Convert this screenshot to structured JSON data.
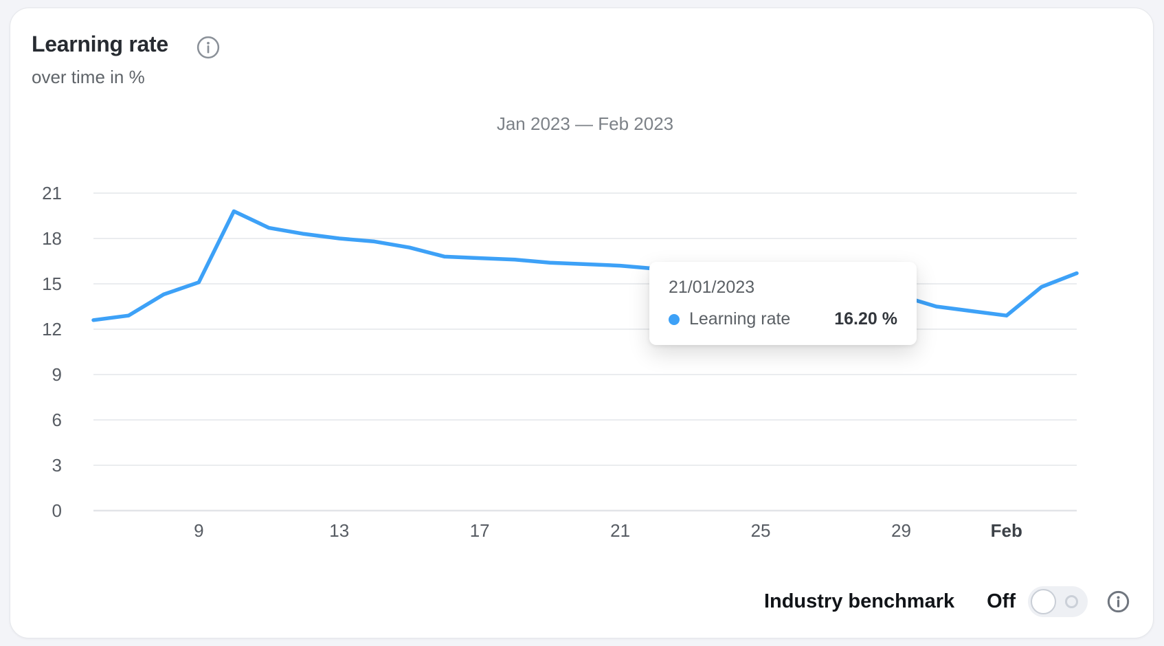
{
  "card": {
    "title": "Learning rate",
    "subtitle": "over time in %",
    "range_title": "Jan 2023 — Feb 2023"
  },
  "tooltip": {
    "date": "21/01/2023",
    "series_label": "Learning rate",
    "value": "16.20 %"
  },
  "benchmark": {
    "label": "Industry benchmark",
    "state_label": "Off"
  },
  "icons": {
    "title_info": "info-icon",
    "benchmark_info": "info-icon",
    "toggle_state": "toggle-off"
  },
  "colors": {
    "line": "#3da1f7",
    "tooltip_dot": "#3da1f7",
    "grid": "#eaecef",
    "axis_text": "#575c63"
  },
  "chart_data": {
    "type": "line",
    "title": "Jan 2023 — Feb 2023",
    "ylabel": "Learning rate (%)",
    "unit": "%",
    "ylim": [
      0,
      21
    ],
    "yticks": [
      0,
      3,
      6,
      9,
      12,
      15,
      18,
      21
    ],
    "grid": true,
    "legend_position": "none",
    "dates": [
      "06/01/2023",
      "07/01/2023",
      "08/01/2023",
      "09/01/2023",
      "10/01/2023",
      "11/01/2023",
      "12/01/2023",
      "13/01/2023",
      "14/01/2023",
      "15/01/2023",
      "16/01/2023",
      "17/01/2023",
      "18/01/2023",
      "19/01/2023",
      "20/01/2023",
      "21/01/2023",
      "22/01/2023",
      "23/01/2023",
      "24/01/2023",
      "25/01/2023",
      "26/01/2023",
      "27/01/2023",
      "28/01/2023",
      "29/01/2023",
      "30/01/2023",
      "31/01/2023",
      "01/02/2023",
      "02/02/2023",
      "03/02/2023"
    ],
    "xticks": [
      {
        "label": "9",
        "index": 3,
        "bold": false
      },
      {
        "label": "13",
        "index": 7,
        "bold": false
      },
      {
        "label": "17",
        "index": 11,
        "bold": false
      },
      {
        "label": "21",
        "index": 15,
        "bold": false
      },
      {
        "label": "25",
        "index": 19,
        "bold": false
      },
      {
        "label": "29",
        "index": 23,
        "bold": false
      },
      {
        "label": "Feb",
        "index": 26,
        "bold": true
      }
    ],
    "series": [
      {
        "name": "Learning rate",
        "values": [
          12.6,
          12.9,
          14.3,
          15.1,
          19.8,
          18.7,
          18.3,
          18.0,
          17.8,
          17.4,
          16.8,
          16.7,
          16.6,
          16.4,
          16.3,
          16.2,
          16.0,
          15.7,
          15.5,
          15.2,
          15.0,
          14.7,
          14.4,
          14.2,
          13.5,
          13.2,
          12.9,
          14.8,
          15.7
        ]
      }
    ],
    "hovered_point": {
      "index": 15,
      "date": "21/01/2023",
      "value": 16.2
    }
  }
}
